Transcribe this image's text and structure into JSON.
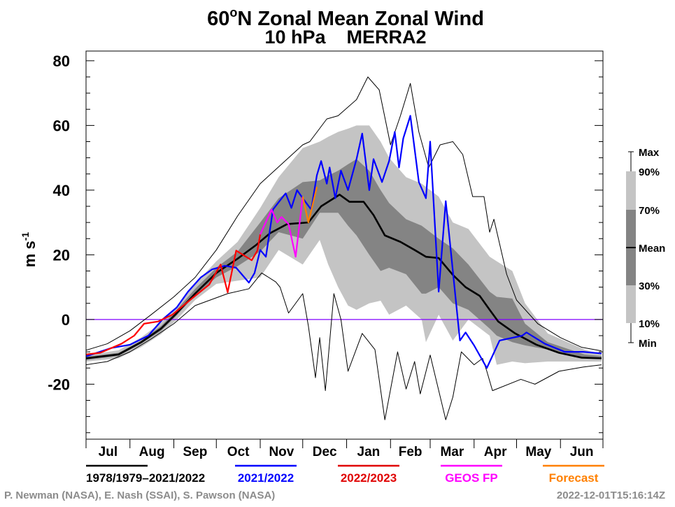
{
  "chart_data": {
    "type": "line",
    "title_line1_main": "60",
    "title_line1_sup": "o",
    "title_line1_rest": "N Zonal Mean Zonal Wind",
    "title_line2": "10 hPa    MERRA2",
    "ylabel_main": "m s",
    "ylabel_sup": "-1",
    "ylim": [
      -37,
      83
    ],
    "grid": false,
    "y_ticks": [
      "80",
      "60",
      "40",
      "20",
      "0",
      "-20"
    ],
    "y_tick_values": [
      80,
      60,
      40,
      20,
      0,
      -20
    ],
    "x_tick_labels": [
      "Jul",
      "Aug",
      "Sep",
      "Oct",
      "Nov",
      "Dec",
      "Jan",
      "Feb",
      "Mar",
      "Apr",
      "May",
      "Jun"
    ],
    "zero_line_color": "#8000ff",
    "climatology_bands": {
      "columns": [
        "date",
        "p10",
        "p30",
        "p70",
        "p90"
      ],
      "rows": [
        [
          "Jul 1",
          -13,
          -12.5,
          -11.5,
          -11
        ],
        [
          "Jul 24",
          -12,
          -11.3,
          -10.3,
          -9.5
        ],
        [
          "Aug 9",
          -8.5,
          -7.5,
          -6.5,
          -5.5
        ],
        [
          "Aug 23",
          -4.5,
          -3.5,
          -2,
          -1
        ],
        [
          "Sep 2",
          -0.5,
          0.8,
          2.5,
          3.5
        ],
        [
          "Sep 16",
          6,
          7.5,
          9.5,
          11
        ],
        [
          "Oct 1",
          11,
          13,
          16,
          18
        ],
        [
          "Oct 16",
          12,
          16.5,
          21,
          24
        ],
        [
          "Nov 1",
          13,
          21,
          30,
          34.5
        ],
        [
          "Nov 14",
          21.5,
          27,
          37.5,
          44
        ],
        [
          "Dec 1",
          17,
          25,
          42.5,
          53
        ],
        [
          "Dec 13",
          24.6,
          33,
          43,
          55
        ],
        [
          "Dec 19",
          17,
          33,
          44.5,
          56.5
        ],
        [
          "Dec 26",
          10,
          33,
          46,
          58
        ],
        [
          "Jan 2",
          4.3,
          29,
          48,
          59
        ],
        [
          "Jan 8",
          3,
          26,
          49.6,
          60
        ],
        [
          "Jan 17",
          5,
          20,
          46,
          60
        ],
        [
          "Jan 25",
          5.8,
          15,
          40,
          55
        ],
        [
          "Jan 31",
          1.5,
          16,
          36,
          50
        ],
        [
          "Feb 12",
          4.3,
          14,
          31,
          44
        ],
        [
          "Feb 23",
          0,
          8,
          29,
          42
        ],
        [
          "Feb 26",
          -7,
          8,
          28,
          41
        ],
        [
          "Mar 7",
          1.5,
          10,
          25,
          38
        ],
        [
          "Mar 17",
          -6.5,
          5,
          22,
          30
        ],
        [
          "Mar 28",
          0,
          3,
          17,
          28
        ],
        [
          "Apr 12",
          -5,
          -2.8,
          8.6,
          19.4
        ],
        [
          "Apr 17",
          -14,
          -5,
          7,
          18
        ],
        [
          "Apr 28",
          -13,
          -7,
          6.5,
          15
        ],
        [
          "May 7",
          -13.5,
          -8,
          -1.3,
          5
        ],
        [
          "May 23",
          -13,
          -9.3,
          -7,
          -4.3
        ],
        [
          "Jun 18",
          -13,
          -12,
          -10.8,
          -9.3
        ],
        [
          "Jun 30",
          -13,
          -12.3,
          -11.3,
          -10.8
        ]
      ],
      "outer_color": "#c4c4c4",
      "inner_color": "#848484"
    },
    "series": [
      {
        "name": "Max",
        "color": "#000000",
        "points": [
          [
            "Jul 1",
            -9.5
          ],
          [
            "Jul 16",
            -7.5
          ],
          [
            "Aug 1",
            -3.5
          ],
          [
            "Aug 16",
            1.5
          ],
          [
            "Sep 1",
            7
          ],
          [
            "Sep 16",
            13
          ],
          [
            "Oct 1",
            21.5
          ],
          [
            "Oct 16",
            32
          ],
          [
            "Nov 1",
            42
          ],
          [
            "Nov 16",
            48
          ],
          [
            "Dec 1",
            54
          ],
          [
            "Dec 6",
            55
          ],
          [
            "Dec 18",
            62
          ],
          [
            "Dec 26",
            63
          ],
          [
            "Jan 8",
            68
          ],
          [
            "Jan 16",
            75
          ],
          [
            "Jan 24",
            71
          ],
          [
            "Feb 1",
            54
          ],
          [
            "Feb 8",
            63
          ],
          [
            "Feb 15",
            73
          ],
          [
            "Feb 21",
            58
          ],
          [
            "Feb 28",
            47
          ],
          [
            "Mar 8",
            54
          ],
          [
            "Mar 17",
            55
          ],
          [
            "Mar 24",
            51
          ],
          [
            "Mar 31",
            38
          ],
          [
            "Apr 8",
            38
          ],
          [
            "Apr 12",
            27
          ],
          [
            "Apr 15",
            31
          ],
          [
            "Apr 24",
            14
          ],
          [
            "May 1",
            6
          ],
          [
            "May 16",
            -1.3
          ],
          [
            "Jun 1",
            -5.6
          ],
          [
            "Jun 16",
            -8.6
          ],
          [
            "Jun 30",
            -9.7
          ]
        ]
      },
      {
        "name": "Min",
        "color": "#000000",
        "points": [
          [
            "Jul 1",
            -14
          ],
          [
            "Jul 16",
            -13
          ],
          [
            "Aug 1",
            -10
          ],
          [
            "Aug 16",
            -6
          ],
          [
            "Sep 1",
            -1.3
          ],
          [
            "Sep 16",
            4.3
          ],
          [
            "Oct 9",
            8
          ],
          [
            "Oct 24",
            9.5
          ],
          [
            "Nov 2",
            14.4
          ],
          [
            "Nov 12",
            11.6
          ],
          [
            "Nov 15",
            10
          ],
          [
            "Nov 21",
            2
          ],
          [
            "Dec 1",
            8
          ],
          [
            "Dec 5",
            -2
          ],
          [
            "Dec 10",
            -18
          ],
          [
            "Dec 13",
            -5.6
          ],
          [
            "Dec 17",
            -22
          ],
          [
            "Dec 23",
            8
          ],
          [
            "Dec 28",
            0
          ],
          [
            "Jan 2",
            -16
          ],
          [
            "Jan 12",
            -4.3
          ],
          [
            "Jan 21",
            -9.3
          ],
          [
            "Jan 28",
            -31
          ],
          [
            "Feb 6",
            -10
          ],
          [
            "Feb 12",
            -21.5
          ],
          [
            "Feb 18",
            -13
          ],
          [
            "Feb 22",
            -23
          ],
          [
            "Mar 1",
            -11
          ],
          [
            "Mar 12",
            -31
          ],
          [
            "Mar 17",
            -24
          ],
          [
            "Mar 23",
            -10
          ],
          [
            "Apr 1",
            -14
          ],
          [
            "Apr 7",
            -12
          ],
          [
            "Apr 10",
            -16
          ],
          [
            "Apr 14",
            -22
          ],
          [
            "May 4",
            -18.5
          ],
          [
            "May 14",
            -20
          ],
          [
            "May 31",
            -16
          ],
          [
            "Jun 17",
            -14.7
          ],
          [
            "Jun 30",
            -14
          ]
        ]
      },
      {
        "name": "1978/1979–2021/2022",
        "color": "#000000",
        "points": [
          [
            "Jul 1",
            -12
          ],
          [
            "Jul 24",
            -10.8
          ],
          [
            "Aug 9",
            -7
          ],
          [
            "Aug 23",
            -2.8
          ],
          [
            "Sep 2",
            1.5
          ],
          [
            "Sep 16",
            8
          ],
          [
            "Oct 1",
            14.4
          ],
          [
            "Oct 16",
            18.8
          ],
          [
            "Oct 29",
            23
          ],
          [
            "Nov 8",
            26.7
          ],
          [
            "Nov 20",
            29.5
          ],
          [
            "Dec 5",
            30
          ],
          [
            "Dec 14",
            35
          ],
          [
            "Dec 27",
            38.6
          ],
          [
            "Jan 3",
            36.4
          ],
          [
            "Jan 13",
            36.4
          ],
          [
            "Jan 20",
            32.3
          ],
          [
            "Jan 28",
            26
          ],
          [
            "Feb 8",
            24
          ],
          [
            "Feb 18",
            21.5
          ],
          [
            "Feb 26",
            19.4
          ],
          [
            "Mar 7",
            19
          ],
          [
            "Mar 17",
            13.8
          ],
          [
            "Mar 26",
            10
          ],
          [
            "Apr 5",
            7.3
          ],
          [
            "Apr 12",
            3
          ],
          [
            "Apr 18",
            -0.6
          ],
          [
            "Apr 30",
            -4.3
          ],
          [
            "May 15",
            -7.8
          ],
          [
            "May 31",
            -10.3
          ],
          [
            "Jun 16",
            -11.8
          ],
          [
            "Jun 30",
            -12
          ]
        ]
      },
      {
        "name": "2021/2022",
        "color": "#0000ff",
        "points": [
          [
            "Jul 1",
            -11.4
          ],
          [
            "Jul 19",
            -8.8
          ],
          [
            "Aug 1",
            -7.8
          ],
          [
            "Aug 14",
            -5
          ],
          [
            "Aug 24",
            0
          ],
          [
            "Sep 3",
            3.7
          ],
          [
            "Sep 11",
            8.6
          ],
          [
            "Sep 20",
            13
          ],
          [
            "Sep 28",
            15.5
          ],
          [
            "Oct 7",
            16.6
          ],
          [
            "Oct 15",
            16
          ],
          [
            "Oct 24",
            11.4
          ],
          [
            "Oct 28",
            14.4
          ],
          [
            "Nov 1",
            21.5
          ],
          [
            "Nov 5",
            19.4
          ],
          [
            "Nov 10",
            34
          ],
          [
            "Nov 18",
            38.5
          ],
          [
            "Nov 19",
            39
          ],
          [
            "Nov 23",
            34.5
          ],
          [
            "Nov 27",
            40
          ],
          [
            "Dec 1",
            37.5
          ],
          [
            "Dec 7",
            34
          ],
          [
            "Dec 11",
            44.6
          ],
          [
            "Dec 14",
            49
          ],
          [
            "Dec 18",
            42
          ],
          [
            "Dec 20",
            47
          ],
          [
            "Dec 24",
            37.5
          ],
          [
            "Dec 28",
            46
          ],
          [
            "Jan 2",
            40
          ],
          [
            "Jan 8",
            49.6
          ],
          [
            "Jan 12",
            57.5
          ],
          [
            "Jan 17",
            40
          ],
          [
            "Jan 20",
            49.6
          ],
          [
            "Jan 26",
            42.5
          ],
          [
            "Jan 31",
            49
          ],
          [
            "Feb 4",
            58
          ],
          [
            "Feb 7",
            47
          ],
          [
            "Feb 10",
            56
          ],
          [
            "Feb 15",
            63
          ],
          [
            "Feb 21",
            42.5
          ],
          [
            "Feb 26",
            37.5
          ],
          [
            "Mar 1",
            55
          ],
          [
            "Mar 7",
            8.6
          ],
          [
            "Mar 12",
            36.6
          ],
          [
            "Mar 22",
            -6.5
          ],
          [
            "Mar 26",
            -4
          ],
          [
            "Apr 1",
            -8
          ],
          [
            "Apr 10",
            -15
          ],
          [
            "Apr 19",
            -6.5
          ],
          [
            "May 5",
            -5
          ],
          [
            "May 8",
            -4
          ],
          [
            "May 21",
            -7.5
          ],
          [
            "Jun 4",
            -10
          ],
          [
            "Jun 17",
            -10
          ],
          [
            "Jun 30",
            -10.5
          ]
        ]
      },
      {
        "name": "2022/2023",
        "color": "#ff0000",
        "points": [
          [
            "Jul 1",
            -10.8
          ],
          [
            "Jul 11",
            -10.3
          ],
          [
            "Jul 26",
            -7.5
          ],
          [
            "Aug 4",
            -5
          ],
          [
            "Aug 11",
            -1.3
          ],
          [
            "Aug 21",
            -0.6
          ],
          [
            "Aug 31",
            1.5
          ],
          [
            "Sep 6",
            3.7
          ],
          [
            "Sep 16",
            7.3
          ],
          [
            "Sep 26",
            10.8
          ],
          [
            "Oct 4",
            17
          ],
          [
            "Oct 9",
            8.4
          ],
          [
            "Oct 15",
            21.3
          ],
          [
            "Oct 26",
            18.3
          ],
          [
            "Oct 30",
            21.3
          ],
          [
            "Nov 1",
            26.3
          ]
        ]
      },
      {
        "name": "GEOS FP",
        "color": "#ff00ff",
        "points": [
          [
            "Nov 1",
            26.3
          ],
          [
            "Nov 9",
            34
          ],
          [
            "Nov 13",
            30
          ],
          [
            "Nov 16",
            31.7
          ],
          [
            "Nov 21",
            29.5
          ],
          [
            "Nov 26",
            19.4
          ],
          [
            "Dec 1",
            38
          ]
        ]
      },
      {
        "name": "Forecast",
        "color": "#ff8000",
        "points": [
          [
            "Dec 1",
            38
          ],
          [
            "Dec 5",
            30
          ],
          [
            "Dec 11",
            41
          ]
        ]
      }
    ],
    "band_legend": [
      "Max",
      "90%",
      "70%",
      "Mean",
      "30%",
      "10%",
      "Min"
    ],
    "legend_entries": [
      {
        "label": "1978/1979–2021/2022",
        "color": "#000000"
      },
      {
        "label": "2021/2022",
        "color": "#0000ff"
      },
      {
        "label": "2022/2023",
        "color": "#e00000"
      },
      {
        "label": "GEOS FP",
        "color": "#ff00ff"
      },
      {
        "label": "Forecast",
        "color": "#ff8000"
      }
    ]
  },
  "footer": {
    "credits": "P. Newman (NASA), E. Nash (SSAI), S. Pawson (NASA)",
    "timestamp": "2022-12-01T15:16:14Z"
  }
}
